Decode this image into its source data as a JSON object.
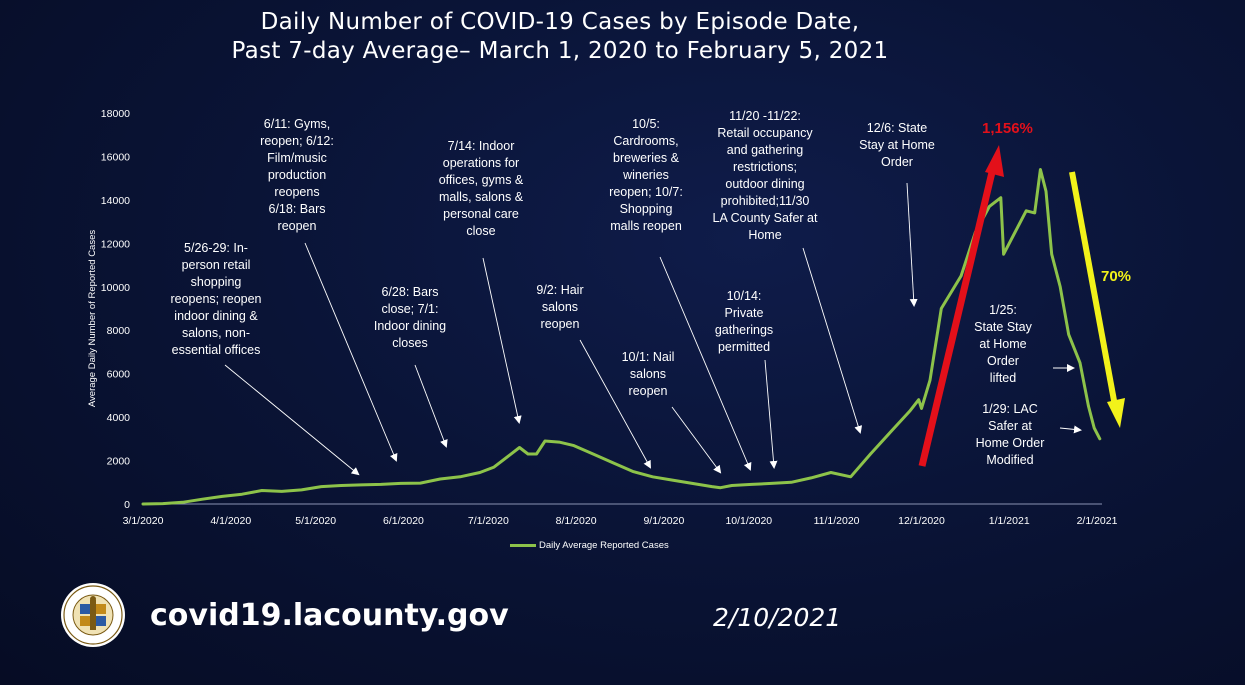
{
  "title": {
    "line1": "Daily Number of COVID-19 Cases by Episode Date,",
    "line2": "Past 7-day Average– March 1, 2020 to February 5, 2021"
  },
  "colors": {
    "series": "#8dc34a",
    "up_arrow": "#e3101a",
    "down_arrow": "#f2f21a",
    "pct_up": "#e3101a",
    "pct_down": "#f2f21a",
    "background": "#0a1437"
  },
  "annotations": [
    {
      "id": "memorial-day",
      "text": "5/26-29: In-\nperson retail\nshopping\nreopens; reopen\nindoor dining &\nsalons, non-\nessential offices"
    },
    {
      "id": "gyms",
      "text": "6/11: Gyms,\nreopen; 6/12:\nFilm/music\nproduction\nreopens\n6/18: Bars\nreopen"
    },
    {
      "id": "bars-close",
      "text": "6/28: Bars\nclose; 7/1:\nIndoor dining\ncloses"
    },
    {
      "id": "indoor-close",
      "text": "7/14: Indoor\noperations for\noffices, gyms &\nmalls, salons &\npersonal care\nclose"
    },
    {
      "id": "hair-salons",
      "text": "9/2: Hair\nsalons\nreopen"
    },
    {
      "id": "nail-salons",
      "text": "10/1: Nail\nsalons\nreopen"
    },
    {
      "id": "cardrooms",
      "text": "10/5:\nCardrooms,\nbreweries &\nwineries\nreopen; 10/7:\nShopping\nmalls reopen"
    },
    {
      "id": "private-gatherings",
      "text": "10/14:\nPrivate\ngatherings\npermitted"
    },
    {
      "id": "retail-occupancy",
      "text": "11/20 -11/22:\nRetail occupancy\nand gathering\nrestrictions;\noutdoor dining\nprohibited;11/30\nLA County Safer at\nHome"
    },
    {
      "id": "stay-at-home",
      "text": "12/6:  State\nStay at Home\nOrder"
    },
    {
      "id": "stay-lifted",
      "text": "1/25:\nState Stay\nat Home\nOrder\nlifted"
    },
    {
      "id": "safer-modified",
      "text": "1/29:  LAC\nSafer at\nHome Order\nModified"
    }
  ],
  "pct_up": "1,156%",
  "pct_down": "70%",
  "footer": {
    "url": "covid19.lacounty.gov",
    "date": "2/10/2021"
  },
  "seal": {
    "top_text": "COUNTY OF LOS ANGELES",
    "bottom_text": "CALIFORNIA"
  },
  "chart_data": {
    "type": "line",
    "title": "",
    "xlabel": "",
    "ylabel": "Average Daily Number of Reported Cases",
    "ylim": [
      0,
      18000
    ],
    "yticks": [
      0,
      2000,
      4000,
      6000,
      8000,
      10000,
      12000,
      14000,
      16000,
      18000
    ],
    "xlim": [
      "2020-03-01",
      "2021-02-01"
    ],
    "xticks": [
      {
        "date": "2020-03-01",
        "label": "3/1/2020"
      },
      {
        "date": "2020-04-01",
        "label": "4/1/2020"
      },
      {
        "date": "2020-05-01",
        "label": "5/1/2020"
      },
      {
        "date": "2020-06-01",
        "label": "6/1/2020"
      },
      {
        "date": "2020-07-01",
        "label": "7/1/2020"
      },
      {
        "date": "2020-08-01",
        "label": "8/1/2020"
      },
      {
        "date": "2020-09-01",
        "label": "9/1/2020"
      },
      {
        "date": "2020-10-01",
        "label": "10/1/2020"
      },
      {
        "date": "2020-11-01",
        "label": "11/1/2020"
      },
      {
        "date": "2020-12-01",
        "label": "12/1/2020"
      },
      {
        "date": "2021-01-01",
        "label": "1/1/2021"
      },
      {
        "date": "2021-02-01",
        "label": "2/1/2021"
      }
    ],
    "grid": false,
    "legend": "bottom",
    "series": [
      {
        "name": "Daily Average Reported Cases",
        "points": [
          [
            "2020-03-01",
            0
          ],
          [
            "2020-03-08",
            20
          ],
          [
            "2020-03-15",
            80
          ],
          [
            "2020-03-22",
            220
          ],
          [
            "2020-03-29",
            350
          ],
          [
            "2020-04-05",
            450
          ],
          [
            "2020-04-12",
            620
          ],
          [
            "2020-04-19",
            580
          ],
          [
            "2020-04-26",
            650
          ],
          [
            "2020-05-03",
            800
          ],
          [
            "2020-05-10",
            850
          ],
          [
            "2020-05-17",
            880
          ],
          [
            "2020-05-24",
            900
          ],
          [
            "2020-05-31",
            950
          ],
          [
            "2020-06-07",
            960
          ],
          [
            "2020-06-14",
            1150
          ],
          [
            "2020-06-21",
            1250
          ],
          [
            "2020-06-28",
            1450
          ],
          [
            "2020-07-03",
            1700
          ],
          [
            "2020-07-08",
            2200
          ],
          [
            "2020-07-12",
            2600
          ],
          [
            "2020-07-15",
            2300
          ],
          [
            "2020-07-18",
            2300
          ],
          [
            "2020-07-21",
            2900
          ],
          [
            "2020-07-26",
            2850
          ],
          [
            "2020-07-31",
            2700
          ],
          [
            "2020-08-07",
            2300
          ],
          [
            "2020-08-14",
            1900
          ],
          [
            "2020-08-21",
            1500
          ],
          [
            "2020-08-28",
            1250
          ],
          [
            "2020-09-04",
            1100
          ],
          [
            "2020-09-11",
            950
          ],
          [
            "2020-09-18",
            800
          ],
          [
            "2020-09-21",
            750
          ],
          [
            "2020-09-25",
            850
          ],
          [
            "2020-10-02",
            900
          ],
          [
            "2020-10-09",
            950
          ],
          [
            "2020-10-16",
            1000
          ],
          [
            "2020-10-23",
            1200
          ],
          [
            "2020-10-30",
            1450
          ],
          [
            "2020-11-06",
            1250
          ],
          [
            "2020-11-13",
            2300
          ],
          [
            "2020-11-20",
            3300
          ],
          [
            "2020-11-27",
            4300
          ],
          [
            "2020-11-30",
            4800
          ],
          [
            "2020-12-01",
            4400
          ],
          [
            "2020-12-04",
            5700
          ],
          [
            "2020-12-08",
            9000
          ],
          [
            "2020-12-15",
            10500
          ],
          [
            "2020-12-20",
            12500
          ],
          [
            "2020-12-25",
            13700
          ],
          [
            "2020-12-29",
            14100
          ],
          [
            "2020-12-30",
            11500
          ],
          [
            "2021-01-03",
            12500
          ],
          [
            "2021-01-07",
            13500
          ],
          [
            "2021-01-10",
            13400
          ],
          [
            "2021-01-12",
            15400
          ],
          [
            "2021-01-14",
            14400
          ],
          [
            "2021-01-16",
            11500
          ],
          [
            "2021-01-19",
            10000
          ],
          [
            "2021-01-22",
            7800
          ],
          [
            "2021-01-26",
            6500
          ],
          [
            "2021-01-29",
            4500
          ],
          [
            "2021-01-31",
            3500
          ],
          [
            "2021-02-02",
            3000
          ]
        ]
      }
    ]
  }
}
